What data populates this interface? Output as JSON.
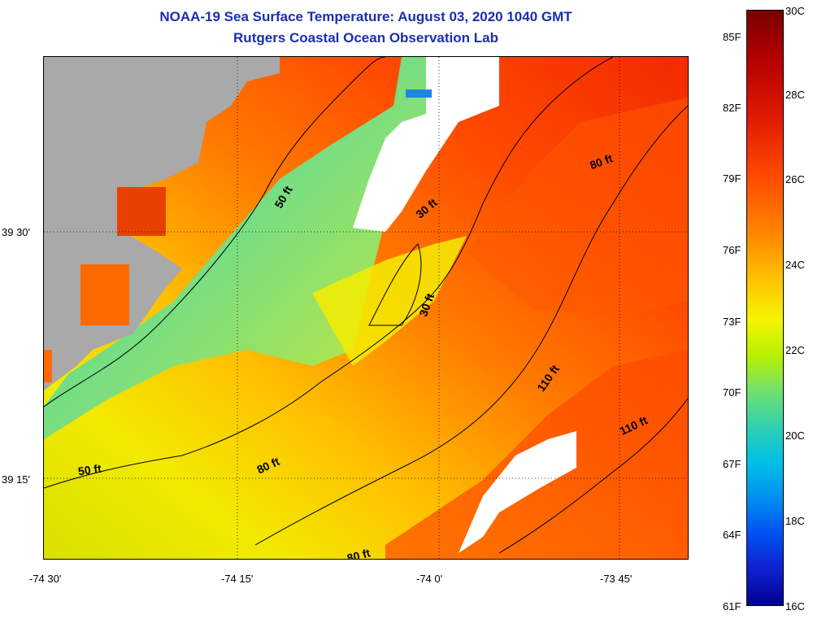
{
  "title": {
    "line1": "NOAA-19 Sea Surface Temperature:  August 03, 2020 1040 GMT",
    "line2": "Rutgers Coastal Ocean Observation Lab"
  },
  "axes": {
    "x_labels": [
      "-74 30'",
      "-74 15'",
      "-74 0'",
      "-73 45'"
    ],
    "y_labels": [
      "39 30'",
      "39 15'"
    ]
  },
  "contour_labels": [
    "50 ft",
    "30 ft",
    "80 ft",
    "30 ft",
    "110 ft",
    "110 ft",
    "50 ft",
    "80 ft",
    "80 ft"
  ],
  "colorbar": {
    "celsius": [
      "30C",
      "28C",
      "26C",
      "24C",
      "22C",
      "20C",
      "18C",
      "16C"
    ],
    "fahrenheit": [
      "85F",
      "82F",
      "79F",
      "76F",
      "73F",
      "70F",
      "67F",
      "64F",
      "61F"
    ]
  },
  "colors": {
    "land": "#a9a9a9",
    "cloud": "#ffffff",
    "title": "#1a2fb0"
  }
}
